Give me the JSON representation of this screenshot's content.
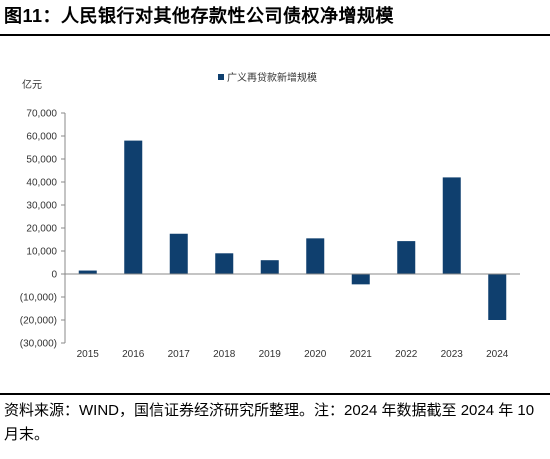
{
  "figure": {
    "title": "图11：人民银行对其他存款性公司债权净增规模",
    "source_note": "资料来源：WIND，国信证券经济研究所整理。注：2024 年数据截至 2024 年 10 月末。"
  },
  "chart_data": {
    "type": "bar",
    "unit_label": "亿元",
    "categories": [
      "2015",
      "2016",
      "2017",
      "2018",
      "2019",
      "2020",
      "2021",
      "2022",
      "2023",
      "2024"
    ],
    "series": [
      {
        "name": "广义再贷款新增规模",
        "values": [
          1500,
          58000,
          17500,
          9000,
          6000,
          15500,
          -4500,
          14300,
          42000,
          -20000
        ],
        "color": "#0f3f6e"
      }
    ],
    "ylim": [
      -30000,
      70000
    ],
    "yticks": [
      70000,
      60000,
      50000,
      40000,
      30000,
      20000,
      10000,
      0,
      -10000,
      -20000,
      -30000
    ],
    "ytick_labels": [
      "70,000",
      "60,000",
      "50,000",
      "40,000",
      "30,000",
      "20,000",
      "10,000",
      "0",
      "(10,000)",
      "(20,000)",
      "(30,000)"
    ],
    "grid": false,
    "legend_position": "top-center"
  }
}
